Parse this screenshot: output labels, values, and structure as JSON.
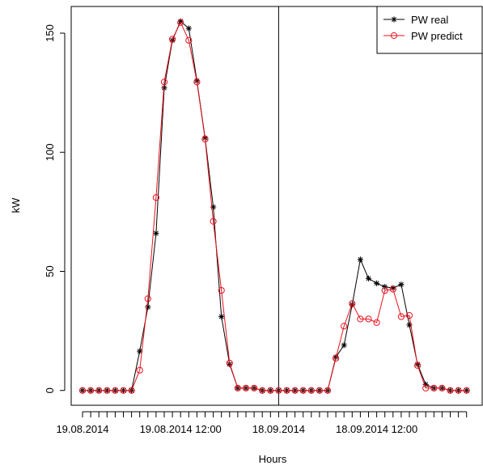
{
  "chart_data": {
    "type": "line",
    "xlabel": "Hours",
    "ylabel": "kW",
    "categories": [
      "19.08.2014",
      null,
      null,
      null,
      null,
      null,
      null,
      null,
      null,
      null,
      null,
      null,
      "19.08.2014 12:00",
      null,
      null,
      null,
      null,
      null,
      null,
      null,
      null,
      null,
      null,
      null,
      "18.09.2014",
      null,
      null,
      null,
      null,
      null,
      null,
      null,
      null,
      null,
      null,
      null,
      "18.09.2014 12:00",
      null,
      null,
      null,
      null,
      null,
      null,
      null,
      null,
      null,
      null,
      null
    ],
    "series": [
      {
        "name": "PW real",
        "color": "#000000",
        "marker": "star",
        "values": [
          0,
          0,
          0,
          0,
          0,
          0,
          0,
          16.5,
          35,
          66,
          127,
          147,
          155,
          152,
          130,
          106,
          77,
          31,
          11,
          1,
          1,
          1,
          0,
          0,
          0,
          0,
          0,
          0,
          0,
          0,
          0,
          14,
          19,
          36,
          55,
          47,
          45,
          43.5,
          43,
          44.5,
          27.5,
          11,
          2.5,
          1,
          1,
          0,
          0,
          0
        ]
      },
      {
        "name": "PW predict",
        "color": "#e8121e",
        "marker": "circle",
        "values": [
          0,
          0,
          0,
          0,
          0,
          0,
          0,
          8.5,
          38.5,
          81,
          129.5,
          147.5,
          154.5,
          147,
          129.5,
          105.5,
          71,
          42,
          11.5,
          1,
          1,
          1,
          0,
          0,
          0,
          0,
          0,
          0,
          0,
          0,
          0,
          13.5,
          27,
          36.5,
          30,
          30,
          28.5,
          42,
          42.5,
          31,
          31.5,
          10.5,
          1,
          1,
          1,
          0,
          0,
          0
        ]
      }
    ],
    "vline": 24,
    "ylim": [
      -6.2,
      161.2
    ],
    "yticks": [
      0,
      50,
      100,
      150
    ],
    "legend": "top-right"
  }
}
